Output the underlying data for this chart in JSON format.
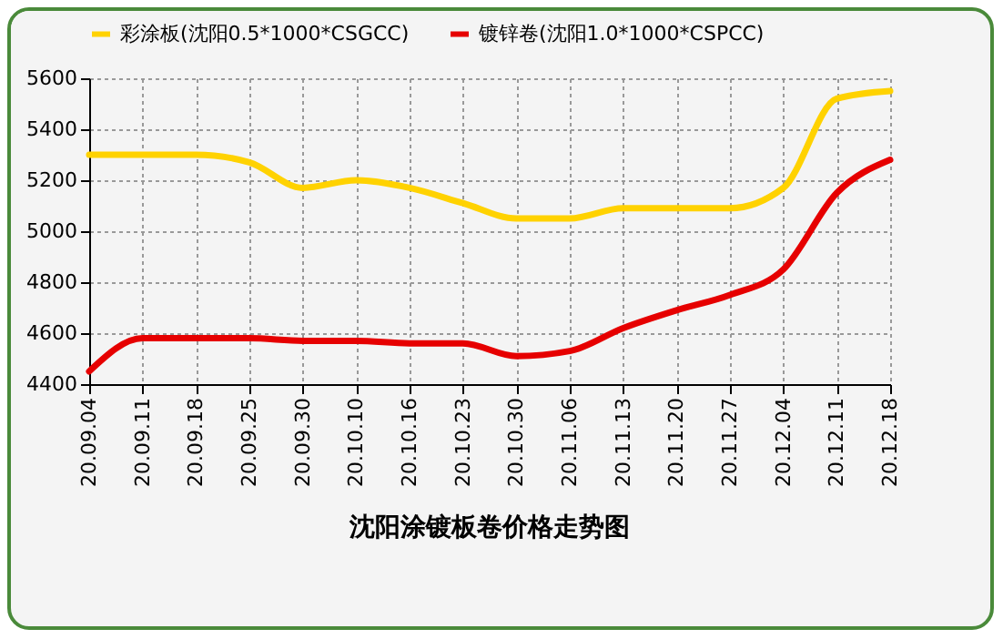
{
  "chart_data": {
    "type": "line",
    "title": "沈阳涂镀板卷价格走势图",
    "categories": [
      "20.09.04",
      "20.09.11",
      "20.09.18",
      "20.09.25",
      "20.09.30",
      "20.10.10",
      "20.10.16",
      "20.10.23",
      "20.10.30",
      "20.11.06",
      "20.11.13",
      "20.11.20",
      "20.11.27",
      "20.12.04",
      "20.12.11",
      "20.12.18"
    ],
    "series": [
      {
        "name": "彩涂板(沈阳0.5*1000*CSGCC)",
        "color": "#ffd200",
        "values": [
          5300,
          5300,
          5300,
          5270,
          5170,
          5200,
          5170,
          5110,
          5050,
          5050,
          5090,
          5090,
          5090,
          5170,
          5520,
          5550
        ]
      },
      {
        "name": "镀锌卷(沈阳1.0*1000*CSPCC)",
        "color": "#e60000",
        "values": [
          4450,
          4580,
          4580,
          4580,
          4570,
          4570,
          4560,
          4560,
          4510,
          4530,
          4620,
          4690,
          4750,
          4850,
          5150,
          5280
        ]
      }
    ],
    "ylim": [
      4400,
      5600
    ],
    "yticks": [
      4400,
      4600,
      4800,
      5000,
      5200,
      5400,
      5600
    ],
    "grid": true,
    "legend": "top"
  }
}
